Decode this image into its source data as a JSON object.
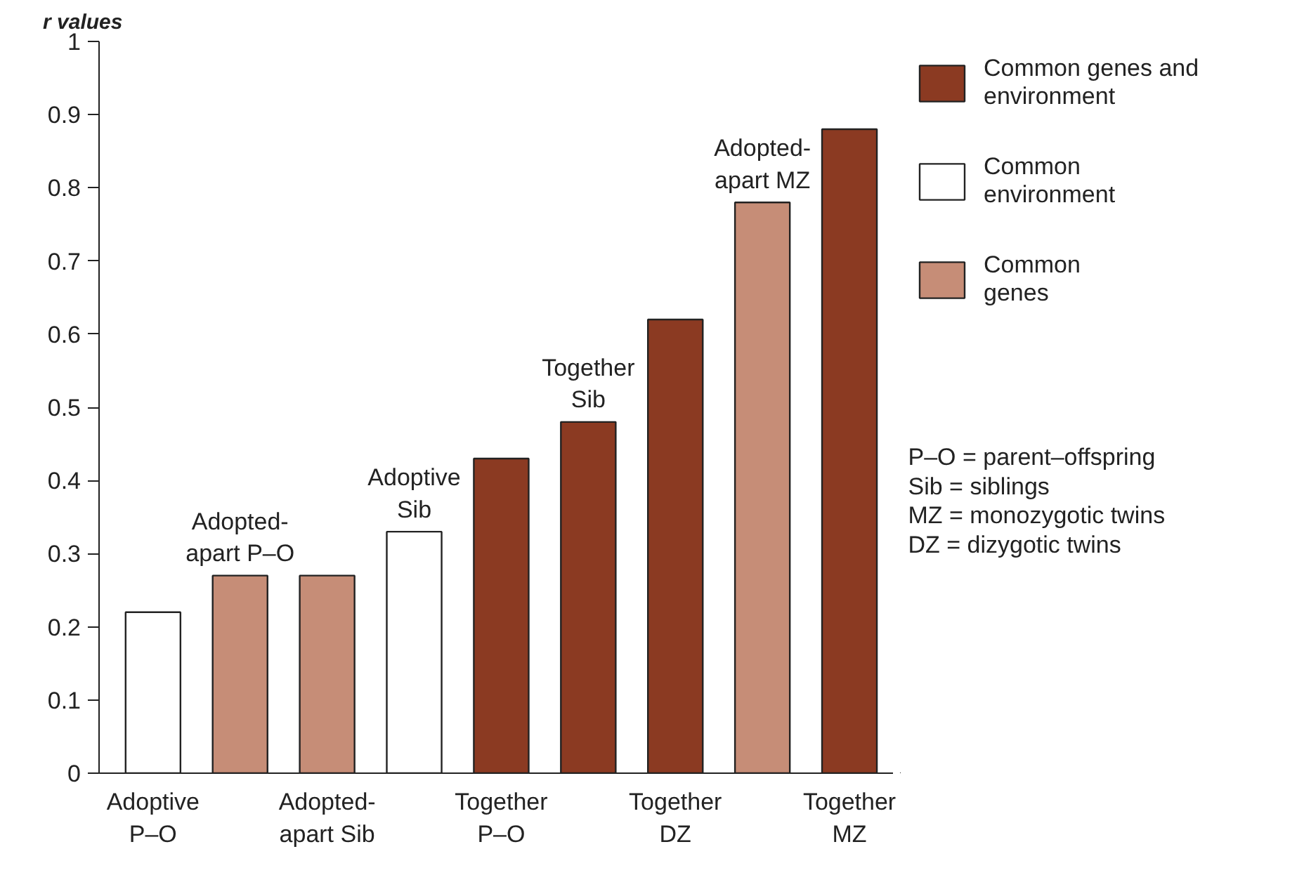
{
  "chart_data": {
    "type": "bar",
    "ylabel": "r values",
    "categories": [
      "Adoptive\nP–O",
      "Adopted-\napart P–O",
      "Adopted-\napart Sib",
      "Adoptive\nSib",
      "Together\nP–O",
      "Together\nSib",
      "Together\nDZ",
      "Adopted-\napart MZ",
      "Together\nMZ"
    ],
    "series": [
      {
        "name": "Common genes and\nenvironment",
        "color": "#8b3a22",
        "values": [
          null,
          null,
          null,
          null,
          0.43,
          0.48,
          0.62,
          null,
          0.88
        ]
      },
      {
        "name": "Common\nenvironment",
        "color": "#ffffff",
        "values": [
          0.22,
          null,
          null,
          0.33,
          null,
          null,
          null,
          null,
          null
        ]
      },
      {
        "name": "Common\ngenes",
        "color": "#c68d77",
        "values": [
          null,
          0.27,
          0.27,
          null,
          null,
          null,
          null,
          0.78,
          null
        ]
      }
    ],
    "ylim": [
      0,
      1
    ],
    "yticks": [
      0,
      0.1,
      0.2,
      0.3,
      0.4,
      0.5,
      0.6,
      0.7,
      0.8,
      0.9,
      1
    ],
    "grid": false,
    "legend": "right",
    "annotations": [
      "P–O = parent–offspring",
      "Sib = siblings",
      "MZ = monozygotic twins",
      "DZ = dizygotic twins"
    ]
  }
}
